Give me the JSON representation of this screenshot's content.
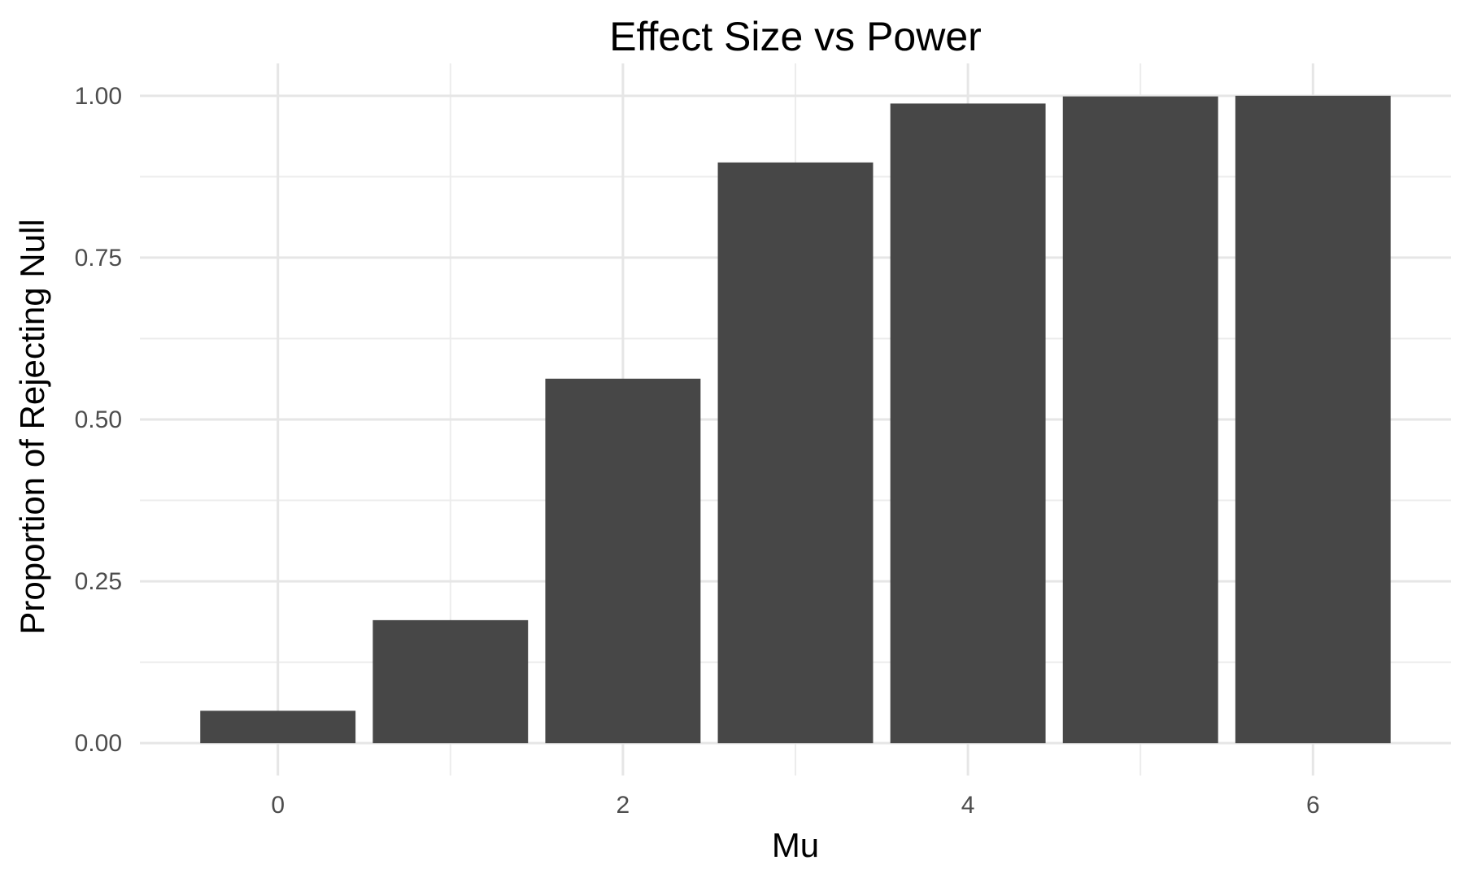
{
  "chart_data": {
    "type": "bar",
    "title": "Effect Size vs Power",
    "xlabel": "Mu",
    "ylabel": "Proportion of Rejecting Null",
    "x": [
      0,
      1,
      2,
      3,
      4,
      5,
      6
    ],
    "values": [
      0.05,
      0.19,
      0.563,
      0.897,
      0.988,
      0.999,
      1.0
    ],
    "xlim": [
      -0.8,
      6.8
    ],
    "ylim": [
      -0.05,
      1.05
    ],
    "x_ticks": [
      0,
      2,
      4,
      6
    ],
    "x_tick_labels": [
      "0",
      "2",
      "4",
      "6"
    ],
    "x_minor_ticks": [
      1,
      3,
      5
    ],
    "y_ticks": [
      0,
      0.25,
      0.5,
      0.75,
      1.0
    ],
    "y_tick_labels": [
      "0.00",
      "0.25",
      "0.50",
      "0.75",
      "1.00"
    ],
    "y_minor_ticks": [
      0.125,
      0.375,
      0.625,
      0.875
    ],
    "bar_color": "#474747",
    "grid": true,
    "legend": "none"
  }
}
